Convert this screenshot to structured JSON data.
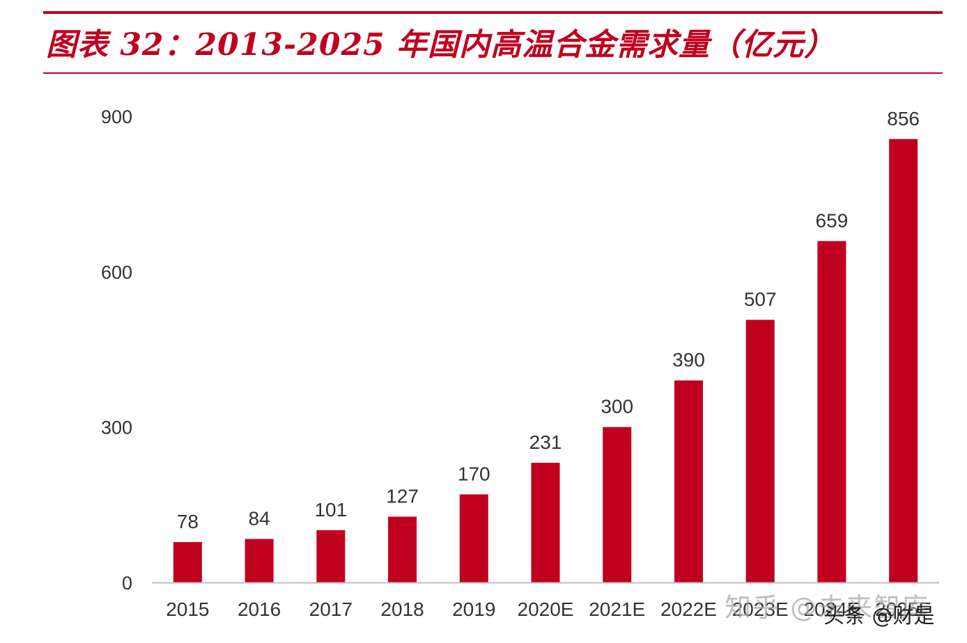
{
  "header": {
    "title": "图表 32：2013-2025 年国内高温合金需求量（亿元）"
  },
  "chart_data": {
    "type": "bar",
    "title": "图表 32：2013-2025 年国内高温合金需求量（亿元）",
    "categories": [
      "2015",
      "2016",
      "2017",
      "2018",
      "2019",
      "2020E",
      "2021E",
      "2022E",
      "2023E",
      "2024E",
      "2025E"
    ],
    "values": [
      78,
      84,
      101,
      127,
      170,
      231,
      300,
      390,
      507,
      659,
      856
    ],
    "data_labels": [
      "78",
      "84",
      "101",
      "127",
      "170",
      "231",
      "300",
      "390",
      "507",
      "659",
      "856"
    ],
    "yticks": [
      0,
      300,
      600,
      900
    ],
    "ylim": [
      0,
      900
    ],
    "xlabel": "",
    "ylabel": "",
    "grid": false,
    "bar_color": "#c0001e"
  },
  "watermarks": {
    "zhihu": "知乎 @未来智库",
    "toutiao": "头条 @财是"
  },
  "colors": {
    "accent": "#c0001e",
    "text": "#333333",
    "axis": "#bfbfbf"
  }
}
